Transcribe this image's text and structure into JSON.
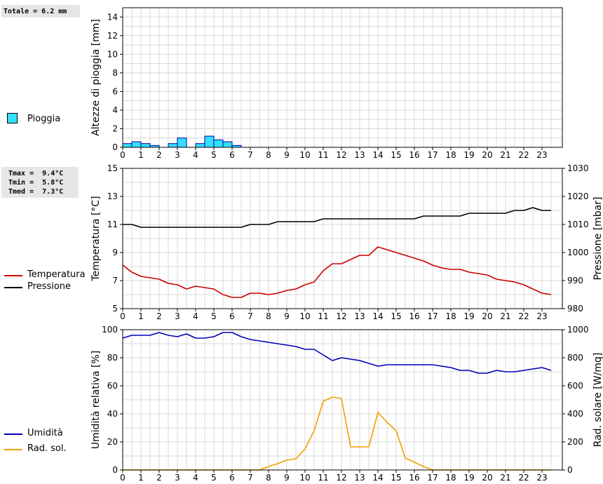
{
  "panel_rain": {
    "total_text": "Totale = 6.2 mm",
    "legend_label": "Pioggia",
    "legend_color": "#33e0ff"
  },
  "panel_temp": {
    "stats": [
      "Tmax =  9.4°C",
      "Tmin =  5.8°C",
      "Tmed =  7.3°C"
    ],
    "legend": [
      {
        "label": "Temperatura",
        "color": "#cc0000"
      },
      {
        "label": "Pressione",
        "color": "#000000"
      }
    ]
  },
  "panel_hum": {
    "legend": [
      {
        "label": "Umidità",
        "color": "#0000bb"
      },
      {
        "label": "Rad. sol.",
        "color": "#f0a000"
      }
    ]
  },
  "chart_data": [
    {
      "type": "bar",
      "ylabel": "Altezze di pioggia [mm]",
      "ylim": [
        0,
        15
      ],
      "yticks": [
        0,
        2,
        4,
        6,
        8,
        10,
        12,
        14
      ],
      "xticks": [
        "0",
        "1",
        "2",
        "3",
        "4",
        "5",
        "6",
        "7",
        "8",
        "9",
        "10",
        "11",
        "12",
        "13",
        "14",
        "15",
        "16",
        "17",
        "18",
        "19",
        "20",
        "21",
        "22",
        "23"
      ],
      "xlim": [
        0,
        24
      ],
      "grid": true,
      "bar_width_h": 0.5,
      "series": [
        {
          "name": "Pioggia",
          "color": "#33e0ff",
          "x": [
            0.0,
            0.5,
            1.0,
            1.5,
            2.5,
            3.0,
            4.0,
            4.5,
            5.0,
            5.5,
            6.0
          ],
          "values": [
            0.4,
            0.6,
            0.4,
            0.2,
            0.4,
            1.0,
            0.4,
            1.2,
            0.8,
            0.6,
            0.2
          ]
        }
      ]
    },
    {
      "type": "line",
      "ylabel": "Temperatura [°C]",
      "y2label": "Pressione [mbar]",
      "ylim": [
        5,
        15
      ],
      "yticks": [
        5,
        7,
        9,
        11,
        13,
        15
      ],
      "y2lim": [
        980,
        1030
      ],
      "y2ticks": [
        980,
        990,
        1000,
        1010,
        1020,
        1030
      ],
      "xticks": [
        "0",
        "1",
        "2",
        "3",
        "4",
        "5",
        "6",
        "7",
        "8",
        "9",
        "10",
        "11",
        "12",
        "13",
        "14",
        "15",
        "16",
        "17",
        "18",
        "19",
        "20",
        "21",
        "22",
        "23"
      ],
      "xlim": [
        0,
        24
      ],
      "grid": true,
      "series": [
        {
          "name": "Temperatura",
          "color": "#cc0000",
          "axis": "left",
          "x": [
            0,
            0.5,
            1,
            1.5,
            2,
            2.5,
            3,
            3.5,
            4,
            4.5,
            5,
            5.5,
            6,
            6.5,
            7,
            7.5,
            8,
            8.5,
            9,
            9.5,
            10,
            10.5,
            11,
            11.5,
            12,
            12.5,
            13,
            13.5,
            14,
            14.5,
            15,
            15.5,
            16,
            16.5,
            17,
            17.5,
            18,
            18.5,
            19,
            19.5,
            20,
            20.5,
            21,
            21.5,
            22,
            22.5,
            23,
            23.5
          ],
          "values": [
            8.1,
            7.6,
            7.3,
            7.2,
            7.1,
            6.8,
            6.7,
            6.4,
            6.6,
            6.5,
            6.4,
            6.0,
            5.8,
            5.8,
            6.1,
            6.1,
            6.0,
            6.1,
            6.3,
            6.4,
            6.7,
            6.9,
            7.7,
            8.2,
            8.2,
            8.5,
            8.8,
            8.8,
            9.4,
            9.2,
            9.0,
            8.8,
            8.6,
            8.4,
            8.1,
            7.9,
            7.8,
            7.8,
            7.6,
            7.5,
            7.4,
            7.1,
            7.0,
            6.9,
            6.7,
            6.4,
            6.1,
            6.0
          ]
        },
        {
          "name": "Pressione",
          "color": "#000000",
          "axis": "right",
          "x": [
            0,
            0.5,
            1,
            1.5,
            2,
            2.5,
            3,
            3.5,
            4,
            4.5,
            5,
            5.5,
            6,
            6.5,
            7,
            7.5,
            8,
            8.5,
            9,
            9.5,
            10,
            10.5,
            11,
            11.5,
            12,
            12.5,
            13,
            13.5,
            14,
            14.5,
            15,
            15.5,
            16,
            16.5,
            17,
            17.5,
            18,
            18.5,
            19,
            19.5,
            20,
            20.5,
            21,
            21.5,
            22,
            22.5,
            23,
            23.5
          ],
          "values": [
            1010,
            1010,
            1009,
            1009,
            1009,
            1009,
            1009,
            1009,
            1009,
            1009,
            1009,
            1009,
            1009,
            1009,
            1010,
            1010,
            1010,
            1011,
            1011,
            1011,
            1011,
            1011,
            1012,
            1012,
            1012,
            1012,
            1012,
            1012,
            1012,
            1012,
            1012,
            1012,
            1012,
            1013,
            1013,
            1013,
            1013,
            1013,
            1014,
            1014,
            1014,
            1014,
            1014,
            1015,
            1015,
            1016,
            1015,
            1015
          ]
        }
      ]
    },
    {
      "type": "line",
      "ylabel": "Umidità relativa [%]",
      "y2label": "Rad. solare [W/mq]",
      "ylim": [
        0,
        100
      ],
      "yticks": [
        0,
        20,
        40,
        60,
        80,
        100
      ],
      "y2lim": [
        0,
        1000
      ],
      "y2ticks": [
        0,
        200,
        400,
        600,
        800,
        1000
      ],
      "xticks": [
        "0",
        "1",
        "2",
        "3",
        "4",
        "5",
        "6",
        "7",
        "8",
        "9",
        "10",
        "11",
        "12",
        "13",
        "14",
        "15",
        "16",
        "17",
        "18",
        "19",
        "20",
        "21",
        "22",
        "23"
      ],
      "xlim": [
        0,
        24
      ],
      "grid": true,
      "series": [
        {
          "name": "Umidità",
          "color": "#0000bb",
          "axis": "left",
          "x": [
            0,
            0.5,
            1,
            1.5,
            2,
            2.5,
            3,
            3.5,
            4,
            4.5,
            5,
            5.5,
            6,
            6.5,
            7,
            7.5,
            8,
            8.5,
            9,
            9.5,
            10,
            10.5,
            11,
            11.5,
            12,
            12.5,
            13,
            13.5,
            14,
            14.5,
            15,
            15.5,
            16,
            16.5,
            17,
            17.5,
            18,
            18.5,
            19,
            19.5,
            20,
            20.5,
            21,
            21.5,
            22,
            22.5,
            23,
            23.5
          ],
          "values": [
            94,
            96,
            96,
            96,
            98,
            96,
            95,
            97,
            94,
            94,
            95,
            98,
            98,
            95,
            93,
            92,
            91,
            90,
            89,
            88,
            86,
            86,
            82,
            78,
            80,
            79,
            78,
            76,
            74,
            75,
            75,
            75,
            75,
            75,
            75,
            74,
            73,
            71,
            71,
            69,
            69,
            71,
            70,
            70,
            71,
            72,
            73,
            71
          ]
        },
        {
          "name": "Rad. sol.",
          "color": "#f0a000",
          "axis": "right",
          "x": [
            0,
            0.5,
            1,
            1.5,
            2,
            2.5,
            3,
            3.5,
            4,
            4.5,
            5,
            5.5,
            6,
            6.5,
            7,
            7.5,
            8,
            8.5,
            9,
            9.5,
            10,
            10.5,
            11,
            11.5,
            12,
            12.5,
            13,
            13.5,
            14,
            14.5,
            15,
            15.5,
            16,
            16.5,
            17,
            17.5,
            18,
            18.5,
            19,
            19.5,
            20,
            20.5,
            21,
            21.5,
            22,
            22.5,
            23,
            23.5
          ],
          "values": [
            0,
            0,
            0,
            0,
            0,
            0,
            0,
            0,
            0,
            0,
            0,
            0,
            0,
            0,
            0,
            0,
            25,
            45,
            70,
            80,
            150,
            280,
            490,
            520,
            510,
            165,
            165,
            165,
            410,
            340,
            280,
            85,
            55,
            25,
            0,
            0,
            0,
            0,
            0,
            0,
            0,
            0,
            0,
            0,
            0,
            0,
            0,
            0
          ]
        }
      ]
    }
  ]
}
